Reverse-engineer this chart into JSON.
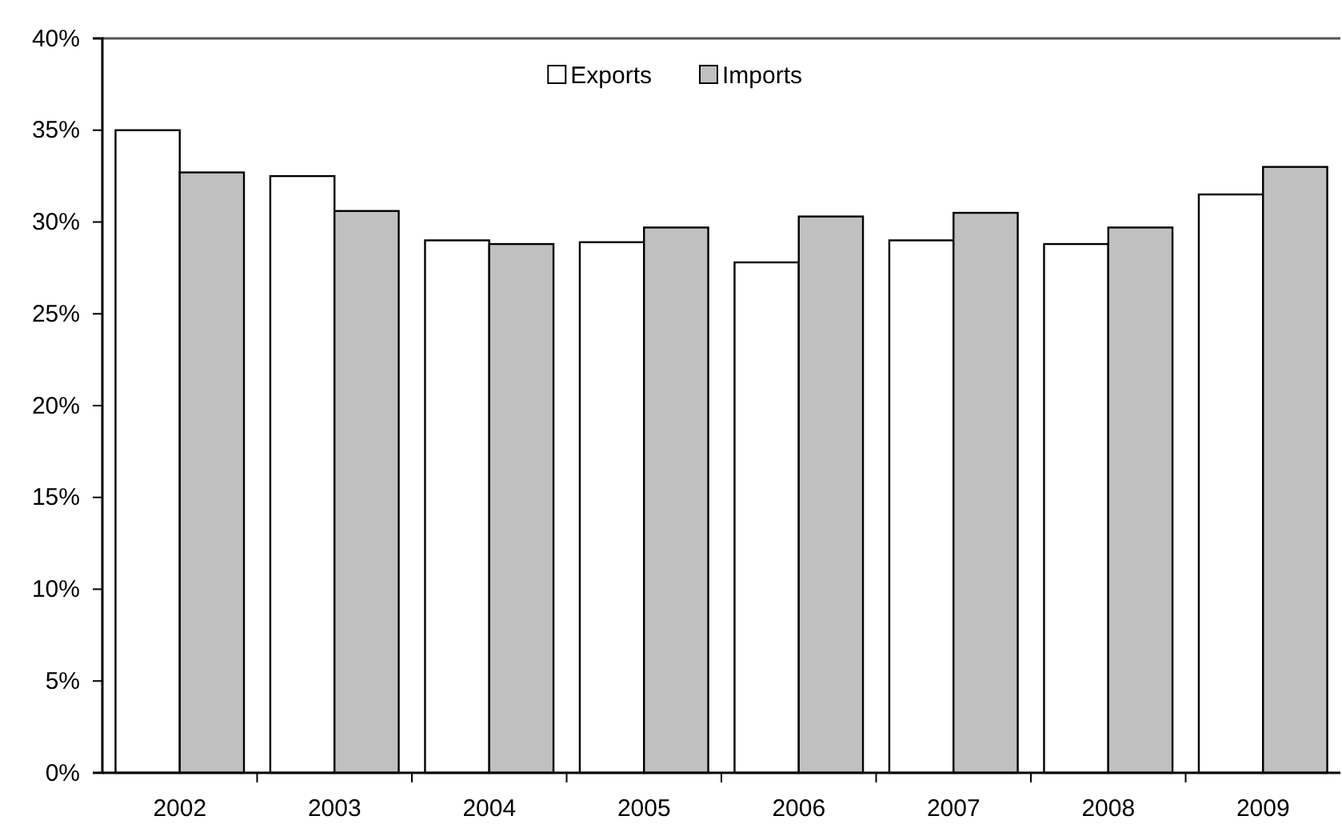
{
  "chart_data": {
    "type": "bar",
    "categories": [
      "2002",
      "2003",
      "2004",
      "2005",
      "2006",
      "2007",
      "2008",
      "2009"
    ],
    "series": [
      {
        "name": "Exports",
        "color": "#ffffff",
        "values": [
          35.0,
          32.5,
          29.0,
          28.9,
          27.8,
          29.0,
          28.8,
          31.5
        ]
      },
      {
        "name": "Imports",
        "color": "#c0c0c0",
        "values": [
          32.7,
          30.6,
          28.8,
          29.7,
          30.3,
          30.5,
          29.7,
          33.0
        ]
      }
    ],
    "ylim": [
      0,
      40
    ],
    "yticks": [
      {
        "value": 0,
        "label": "0%"
      },
      {
        "value": 5,
        "label": "5%"
      },
      {
        "value": 10,
        "label": "10%"
      },
      {
        "value": 15,
        "label": "15%"
      },
      {
        "value": 20,
        "label": "20%"
      },
      {
        "value": 25,
        "label": "25%"
      },
      {
        "value": 30,
        "label": "30%"
      },
      {
        "value": 35,
        "label": "35%"
      },
      {
        "value": 40,
        "label": "40%"
      }
    ],
    "grid": false,
    "legend": "top"
  }
}
